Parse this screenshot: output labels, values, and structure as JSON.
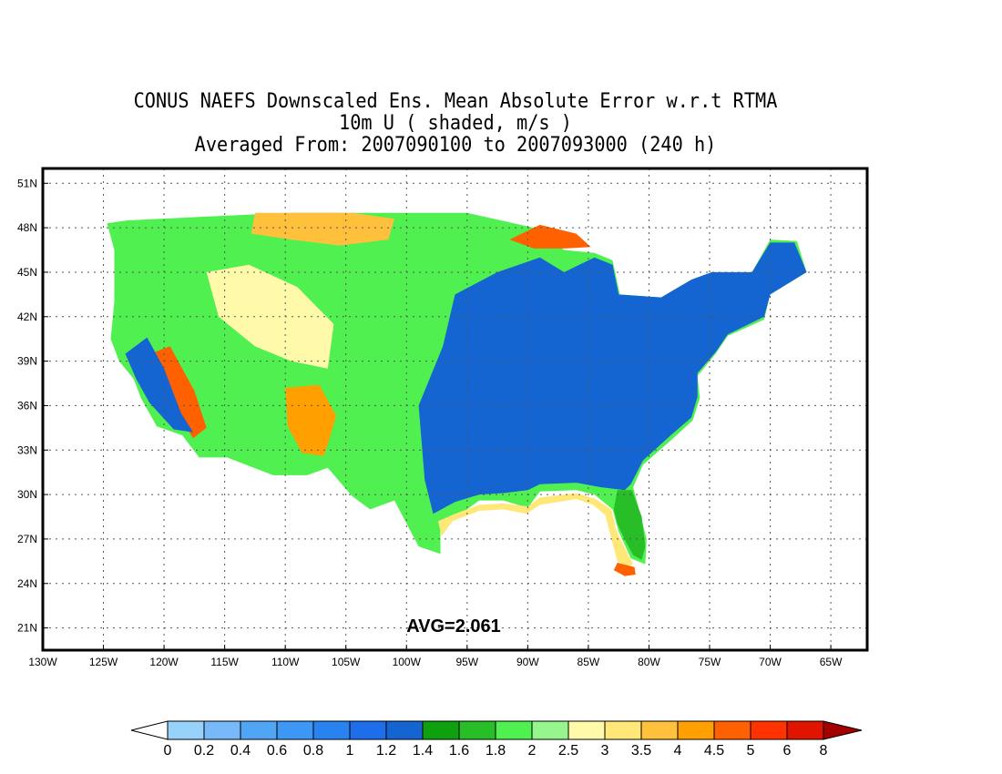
{
  "title": {
    "line1": "CONUS NAEFS Downscaled Ens. Mean Absolute Error w.r.t RTMA",
    "line2": "10m U ( shaded, m/s )",
    "line3": "Averaged From: 2007090100 to 2007093000 (240 h)"
  },
  "map": {
    "lon_range": [
      -130,
      -62
    ],
    "lat_range": [
      19.5,
      52
    ],
    "lon_ticks": [
      {
        "value": -130,
        "label": "130W"
      },
      {
        "value": -125,
        "label": "125W"
      },
      {
        "value": -120,
        "label": "120W"
      },
      {
        "value": -115,
        "label": "115W"
      },
      {
        "value": -110,
        "label": "110W"
      },
      {
        "value": -105,
        "label": "105W"
      },
      {
        "value": -100,
        "label": "100W"
      },
      {
        "value": -95,
        "label": "95W"
      },
      {
        "value": -90,
        "label": "90W"
      },
      {
        "value": -85,
        "label": "85W"
      },
      {
        "value": -80,
        "label": "80W"
      },
      {
        "value": -75,
        "label": "75W"
      },
      {
        "value": -70,
        "label": "70W"
      },
      {
        "value": -65,
        "label": "65W"
      }
    ],
    "lat_ticks": [
      {
        "value": 21,
        "label": "21N"
      },
      {
        "value": 24,
        "label": "24N"
      },
      {
        "value": 27,
        "label": "27N"
      },
      {
        "value": 30,
        "label": "30N"
      },
      {
        "value": 33,
        "label": "33N"
      },
      {
        "value": 36,
        "label": "36N"
      },
      {
        "value": 39,
        "label": "39N"
      },
      {
        "value": 42,
        "label": "42N"
      },
      {
        "value": 45,
        "label": "45N"
      },
      {
        "value": 48,
        "label": "48N"
      },
      {
        "value": 51,
        "label": "51N"
      }
    ],
    "grid": true,
    "avg_label": "AVG=2.061",
    "regions": [
      {
        "name": "conus",
        "level": 1.8
      },
      {
        "name": "east-blue",
        "level": 1.2
      },
      {
        "name": "florida-peninsula",
        "level": 1.6
      },
      {
        "name": "gulf-coast-band",
        "level": 3
      },
      {
        "name": "lake-superior-hotspot",
        "level": 4.5
      },
      {
        "name": "sierra-nevada-hotspot",
        "level": 4.5
      },
      {
        "name": "four-corners-hotspot",
        "level": 4
      },
      {
        "name": "montana-band",
        "level": 3.5
      },
      {
        "name": "florida-keys-hotspot",
        "level": 4.5
      },
      {
        "name": "california-coast-blue",
        "level": 1.2
      },
      {
        "name": "rockies-mixed",
        "level": 2.5
      }
    ]
  },
  "colorbar": {
    "labels": [
      "0",
      "0.2",
      "0.4",
      "0.6",
      "0.8",
      "1",
      "1.2",
      "1.4",
      "1.6",
      "1.8",
      "2",
      "2.5",
      "3",
      "3.5",
      "4",
      "4.5",
      "5",
      "6",
      "8"
    ],
    "colors": [
      "#96d2fa",
      "#78b9fa",
      "#50a5f5",
      "#3c97f5",
      "#2883f0",
      "#1e6eeb",
      "#1464d2",
      "#0fa00f",
      "#28be28",
      "#50f050",
      "#96f58c",
      "#fffaaa",
      "#ffe878",
      "#ffc03c",
      "#ffa000",
      "#ff6000",
      "#ff3200",
      "#e11400"
    ],
    "under_color": "#ffffff",
    "over_color": "#a50000"
  }
}
